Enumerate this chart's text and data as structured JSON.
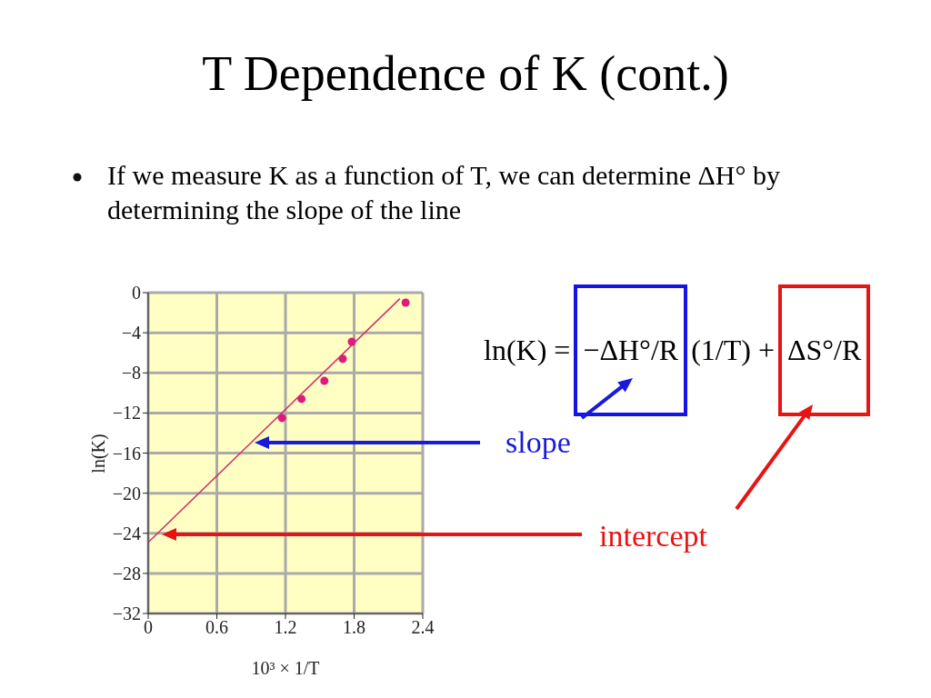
{
  "chart_data": {
    "type": "scatter",
    "title": "T Dependence of K (cont.)",
    "subtitle": "If we measure K as a function of T, we can determine ΔH° by determining the slope of the line",
    "xlabel": "10³ × 1/T",
    "ylabel": "ln(K)",
    "series": [
      {
        "color": "#e0197a",
        "marker": "circle",
        "x": [
          1.17,
          1.34,
          1.54,
          1.7,
          1.78,
          2.25
        ],
        "values": [
          -12.5,
          -10.6,
          -8.8,
          -6.6,
          -4.9,
          -1.0
        ]
      },
      {
        "type": "line",
        "color": "#d42a6a",
        "marker": "none",
        "x": [
          0,
          2.2
        ],
        "values": [
          -24.9,
          -0.6
        ]
      }
    ],
    "xlim": [
      0,
      2.4
    ],
    "xticks": [
      0,
      0.6,
      1.2,
      1.8,
      2.4
    ],
    "ylim": [
      -32,
      0
    ],
    "yticks": [
      {
        "value": 0,
        "label": "0"
      },
      {
        "value": -4,
        "label": "−4"
      },
      {
        "value": -8,
        "label": "−8"
      },
      {
        "value": -12,
        "label": "−12"
      },
      {
        "value": -16,
        "label": "−16"
      },
      {
        "value": -20,
        "label": "−20"
      },
      {
        "value": -24,
        "label": "−24"
      },
      {
        "value": -28,
        "label": "−28"
      },
      {
        "value": -32,
        "label": "−32"
      }
    ],
    "grid": true,
    "annotations": [
      "ln(K) =",
      "−ΔH°/R",
      "(1/T) +",
      "ΔS°/R",
      "slope",
      "intercept"
    ]
  }
}
